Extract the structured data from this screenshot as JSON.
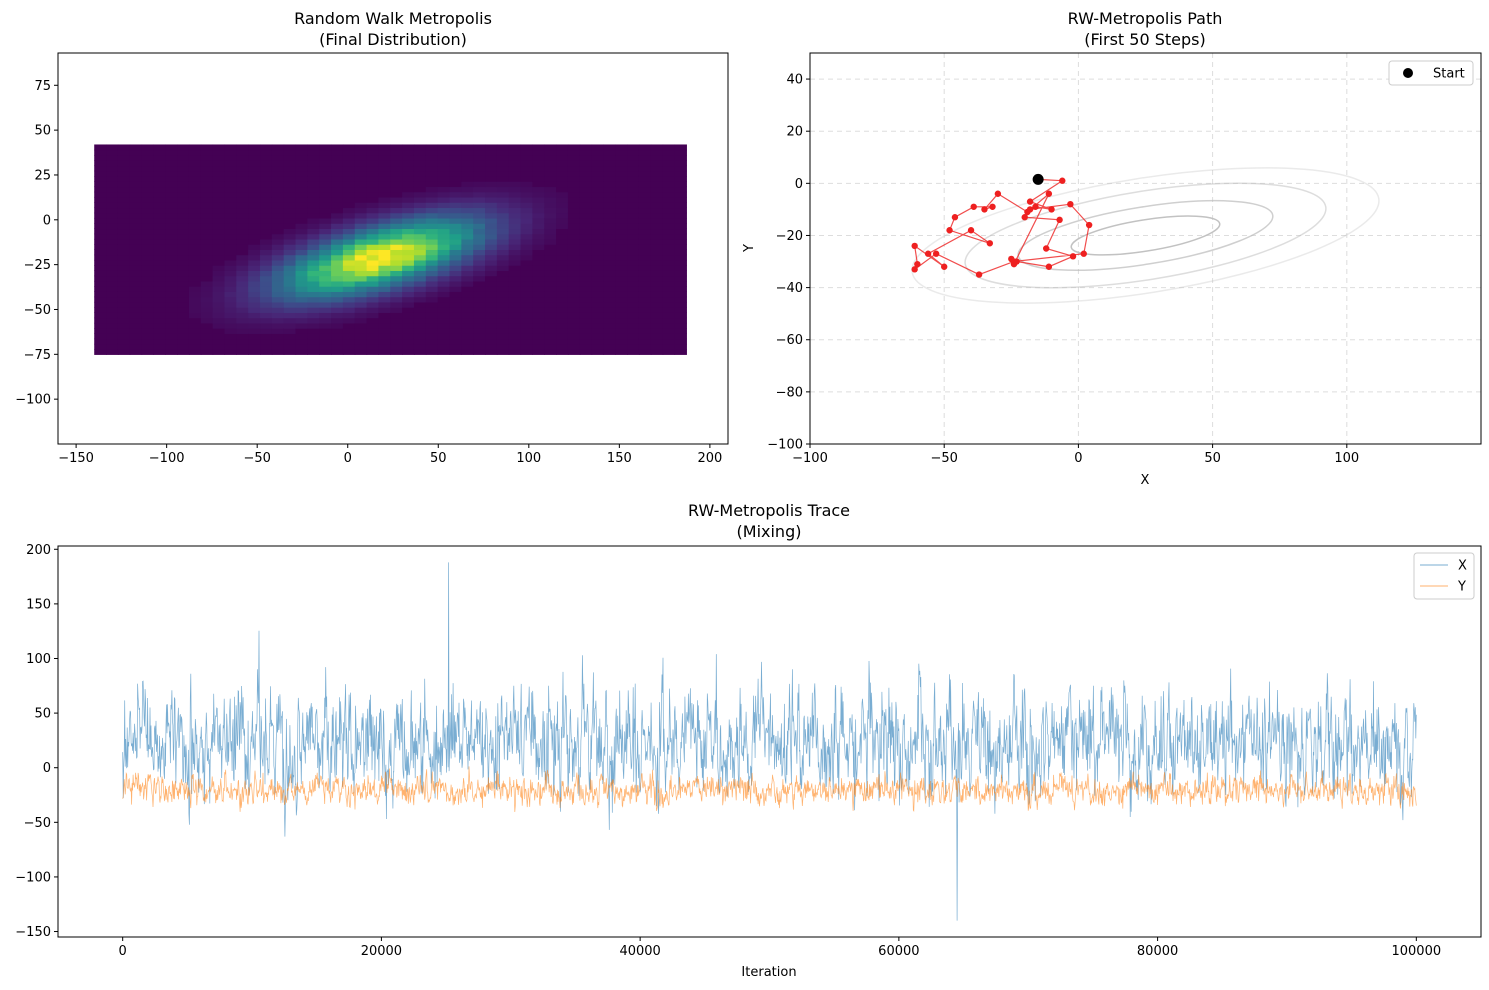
{
  "chart_data": [
    {
      "type": "heatmap",
      "title": [
        "Random Walk Metropolis",
        "(Final Distribution)"
      ],
      "xlabel": "",
      "ylabel": "",
      "xlim": [
        -160,
        210
      ],
      "ylim": [
        -125,
        93
      ],
      "xticks": [
        -150,
        -100,
        -50,
        0,
        50,
        100,
        150,
        200
      ],
      "yticks": [
        -100,
        -75,
        -50,
        -25,
        0,
        25,
        50,
        75
      ],
      "extent": {
        "x": [
          -140,
          187
        ],
        "y": [
          -75,
          42
        ]
      },
      "peak": {
        "x": 18,
        "y": -21
      },
      "colormap": "viridis"
    },
    {
      "type": "scatter",
      "title": [
        "RW-Metropolis Path",
        "(First 50 Steps)"
      ],
      "xlabel": "X",
      "ylabel": "Y",
      "xlim": [
        -100,
        150
      ],
      "ylim": [
        -100,
        50
      ],
      "xticks": [
        -100,
        -50,
        0,
        50,
        100
      ],
      "yticks": [
        -100,
        -80,
        -60,
        -40,
        -20,
        0,
        20,
        40
      ],
      "grid": true,
      "legend": {
        "position": "top-right",
        "entries": [
          "Start"
        ]
      },
      "start": {
        "x": -15,
        "y": 1.5
      },
      "path": [
        [
          -15,
          1.5
        ],
        [
          -6,
          1
        ],
        [
          -18,
          -7
        ],
        [
          -10,
          -10
        ],
        [
          -16,
          -9
        ],
        [
          -20,
          -13
        ],
        [
          -7,
          -14
        ],
        [
          -12,
          -25
        ],
        [
          -2,
          -28
        ],
        [
          -11,
          -32
        ],
        [
          -23,
          -30
        ],
        [
          -25,
          -29
        ],
        [
          -24,
          -31
        ],
        [
          -11,
          -4
        ],
        [
          -19,
          -11
        ],
        [
          -30,
          -4
        ],
        [
          -35,
          -10
        ],
        [
          -32,
          -9
        ],
        [
          -39,
          -9
        ],
        [
          -46,
          -13
        ],
        [
          -48,
          -18
        ],
        [
          -33,
          -23
        ],
        [
          -40,
          -18
        ],
        [
          -56,
          -27
        ],
        [
          -50,
          -32
        ],
        [
          -61,
          -24
        ],
        [
          -60,
          -31
        ],
        [
          -61,
          -33
        ],
        [
          -53,
          -27
        ],
        [
          -37,
          -35
        ],
        [
          -24,
          -30
        ],
        [
          2,
          -27
        ],
        [
          4,
          -16
        ],
        [
          -3,
          -8
        ],
        [
          -18,
          -10
        ]
      ],
      "contours": {
        "center": {
          "x": 25,
          "y": -20
        },
        "radii": [
          [
            28,
            6
          ],
          [
            48,
            11
          ],
          [
            68,
            17
          ],
          [
            88,
            22
          ]
        ]
      },
      "colors": {
        "path": "#ee2020",
        "start": "#000000",
        "contour": "#bbbbbb",
        "grid": "#dddddd"
      }
    },
    {
      "type": "line",
      "title": [
        "RW-Metropolis Trace",
        "(Mixing)"
      ],
      "xlabel": "Iteration",
      "ylabel": "",
      "xlim": [
        -5000,
        105000
      ],
      "ylim": [
        -155,
        203
      ],
      "xticks": [
        0,
        20000,
        40000,
        60000,
        80000,
        100000
      ],
      "yticks": [
        -150,
        -100,
        -50,
        0,
        50,
        100,
        150,
        200
      ],
      "n_iterations": 100000,
      "legend": {
        "position": "top-right",
        "entries": [
          "X",
          "Y"
        ]
      },
      "series": [
        {
          "name": "X",
          "color": "#1f77b4",
          "mean": 25,
          "typical_range": [
            -50,
            120
          ],
          "max": 188,
          "max_at": 25200,
          "min": -140,
          "min_at": 64500
        },
        {
          "name": "Y",
          "color": "#ff7f0e",
          "mean": -20,
          "typical_range": [
            -55,
            15
          ]
        }
      ]
    }
  ]
}
